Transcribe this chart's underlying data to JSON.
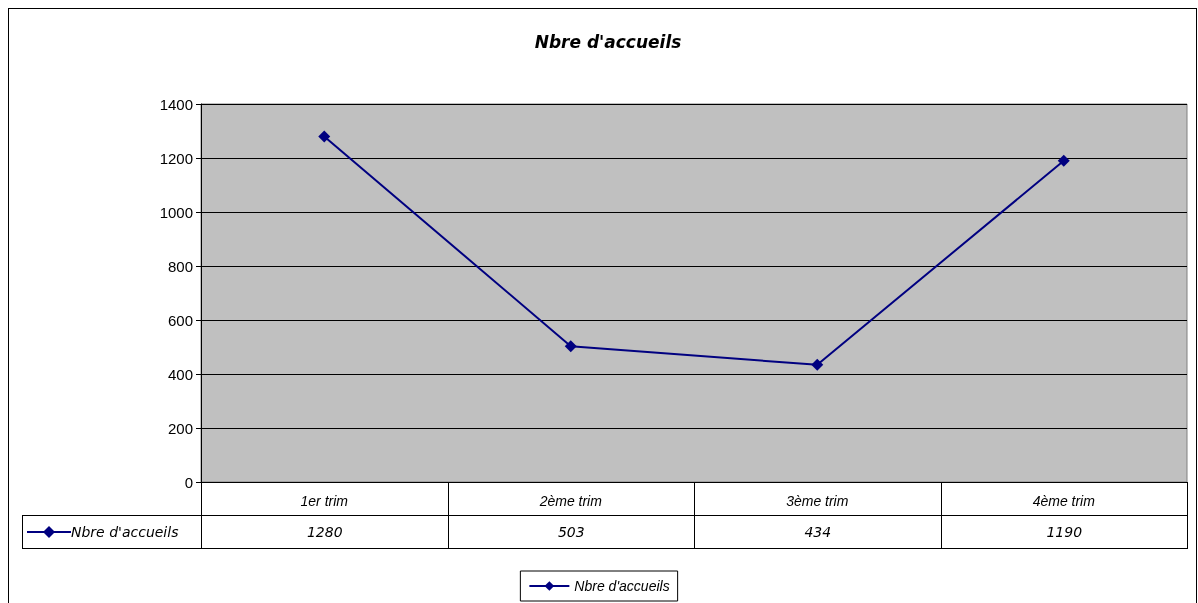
{
  "chart_data": {
    "type": "line",
    "title": "Nbre d'accueils",
    "categories": [
      "1er trim",
      "2ème trim",
      "3ème trim",
      "4ème trim"
    ],
    "series": [
      {
        "name": "Nbre d'accueils",
        "color": "#000080",
        "values": [
          1280,
          503,
          434,
          1190
        ]
      }
    ],
    "ylim": [
      0,
      1400
    ],
    "yticks": [
      0,
      200,
      400,
      600,
      800,
      1000,
      1200,
      1400
    ],
    "grid": "y",
    "legend": "bottom",
    "marker": "diamond",
    "line_style": "solid",
    "data_labels": true
  }
}
